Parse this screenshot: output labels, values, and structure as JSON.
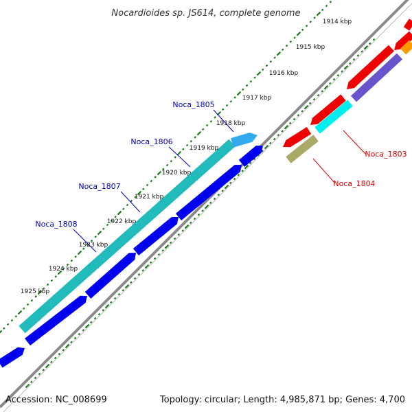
{
  "title": "Nocardioides sp. JS614, complete genome",
  "footer": {
    "accession": "Accession: NC_008699",
    "summary": "Topology: circular; Length: 4,985,871 bp; Genes: 4,700"
  },
  "ticks": [
    "1914 kbp",
    "1915 kbp",
    "1916 kbp",
    "1917 kbp",
    "1918 kbp",
    "1919 kbp",
    "1920 kbp",
    "1921 kbp",
    "1922 kbp",
    "1923 kbp",
    "1924 kbp",
    "1925 kbp"
  ],
  "gene_labels": [
    {
      "name": "Noca_1805",
      "color": "#0000bb"
    },
    {
      "name": "Noca_1806",
      "color": "#0000bb"
    },
    {
      "name": "Noca_1807",
      "color": "#0000bb"
    },
    {
      "name": "Noca_1808",
      "color": "#0000bb"
    },
    {
      "name": "Noca_1803",
      "color": "#dd0000"
    },
    {
      "name": "Noca_1804",
      "color": "#dd0000"
    }
  ],
  "colors": {
    "backbone": "#8a8a8a",
    "tick": "#1a7a1a",
    "blue_gene": "#0000ee",
    "teal_gene": "#22bbbb",
    "light_blue_gene": "#33aaee",
    "red_gene": "#ee0000",
    "cyan_gene": "#00eeee",
    "purple_gene": "#6655cc",
    "olive_gene": "#aaaa66",
    "orange_gene": "#ff9900"
  }
}
